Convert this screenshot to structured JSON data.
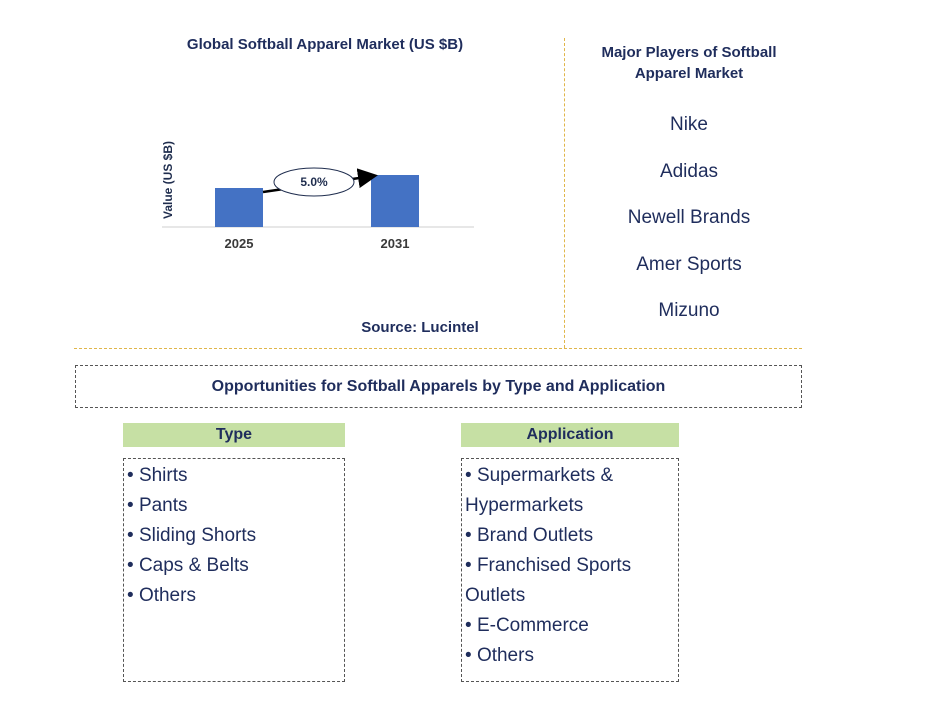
{
  "chart_data": {
    "type": "bar",
    "title": "Global Softball Apparel Market (US $B)",
    "ylabel": "Value (US $B)",
    "xlabel": "",
    "categories": [
      "2025",
      "2031"
    ],
    "values": [
      1.0,
      1.34
    ],
    "ylim": [
      0,
      1.5
    ],
    "annotation": {
      "label": "5.0%",
      "type": "CAGR arrow",
      "from": "2025",
      "to": "2031"
    },
    "colors": {
      "bar": "#4472c4"
    },
    "grid": false
  },
  "source": "Source: Lucintel",
  "players": {
    "title": "Major Players of Softball Apparel Market",
    "items": [
      "Nike",
      "Adidas",
      "Newell Brands",
      "Amer Sports",
      "Mizuno"
    ]
  },
  "opportunities": {
    "title": "Opportunities for Softball Apparels by Type and Application",
    "type": {
      "header": "Type",
      "items": [
        "Shirts",
        "Pants",
        "Sliding Shorts",
        "Caps & Belts",
        "Others"
      ]
    },
    "application": {
      "header": "Application",
      "items": [
        "Supermarkets & Hypermarkets",
        "Brand Outlets",
        "Franchised Sports Outlets",
        "E-Commerce",
        "Others"
      ]
    }
  }
}
